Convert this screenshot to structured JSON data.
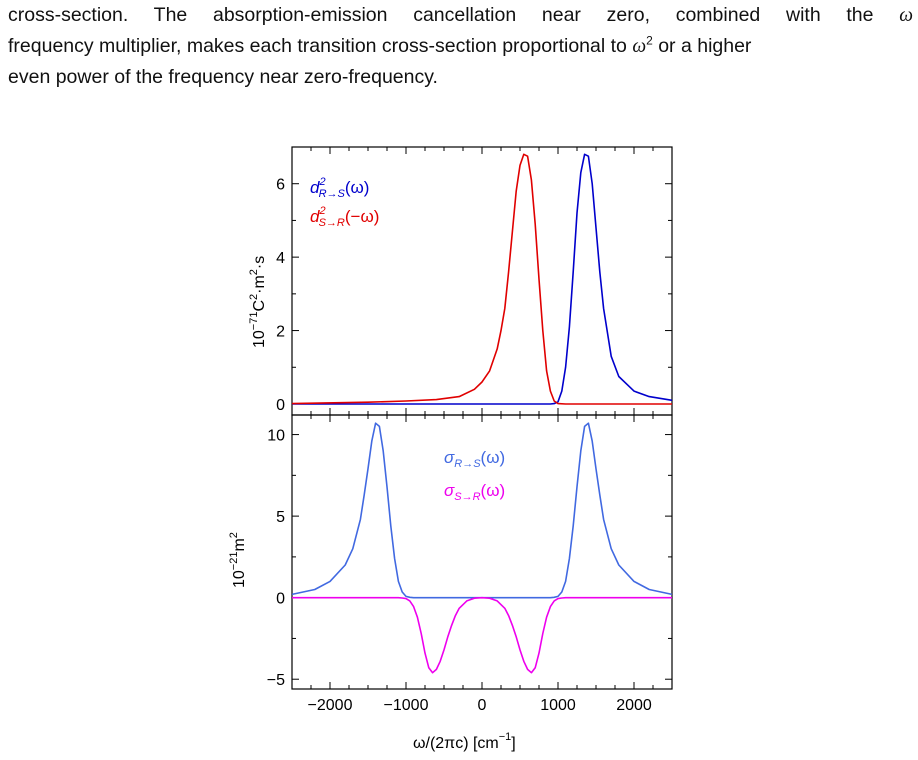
{
  "text": {
    "line1": {
      "before": "cross-section. The absorption-emission cancellation near zero, combined with the",
      "sym": "ω"
    },
    "line2": {
      "before": "frequency multiplier, makes each transition cross-section proportional to",
      "sym": "ω",
      "exp": "2",
      "after": "or a higher"
    },
    "line3": "even power of the frequency near zero-frequency."
  },
  "figure": {
    "top_ylabel": {
      "base": "10",
      "exp1": "−71",
      "unit": "C",
      "exp2": "2",
      "mid": "·m",
      "exp3": "2",
      "end": "·s"
    },
    "bottom_ylabel": {
      "base": "10",
      "exp1": "−21",
      "unit": "m",
      "exp2": "2"
    },
    "xlabel": {
      "main": "ω/(2πc) [cm",
      "exp": "−1",
      "end": "]"
    },
    "colors": {
      "blue_dark": "#0000cc",
      "red": "#e00000",
      "blue_light": "#4169e1",
      "magenta": "#ee00ee"
    }
  },
  "chart_data": [
    {
      "type": "line",
      "xlim": [
        -2500,
        2500
      ],
      "ylim": [
        -0.3,
        7.0
      ],
      "yticks": [
        0,
        2,
        4,
        6
      ],
      "ytick_labels": [
        "0",
        "2",
        "4",
        "6"
      ],
      "legend_placement": "top-left",
      "series": [
        {
          "name": "d²R→S(ω)",
          "label": {
            "main": "d",
            "sup": "2",
            "sub": "R→S",
            "arg": "(ω)"
          },
          "color": "#0000cc",
          "x": [
            -2500,
            900,
            950,
            1000,
            1050,
            1100,
            1150,
            1200,
            1250,
            1300,
            1350,
            1400,
            1450,
            1500,
            1550,
            1600,
            1700,
            1800,
            2000,
            2200,
            2500
          ],
          "y": [
            0,
            0,
            0.01,
            0.06,
            0.35,
            1.0,
            2.1,
            3.6,
            5.2,
            6.3,
            6.8,
            6.75,
            6.0,
            4.8,
            3.6,
            2.6,
            1.3,
            0.75,
            0.35,
            0.2,
            0.1
          ]
        },
        {
          "name": "d²S→R(−ω)",
          "label": {
            "main": "d",
            "sup": "2",
            "sub": "S→R",
            "arg": "(−ω)"
          },
          "color": "#e00000",
          "x": [
            -2500,
            -1500,
            -1000,
            -600,
            -300,
            -100,
            0,
            100,
            200,
            250,
            300,
            350,
            400,
            450,
            500,
            550,
            600,
            650,
            700,
            750,
            800,
            850,
            900,
            950,
            1000,
            1100,
            2500
          ],
          "y": [
            0.01,
            0.05,
            0.08,
            0.12,
            0.2,
            0.4,
            0.6,
            0.9,
            1.5,
            2.0,
            2.6,
            3.6,
            4.7,
            5.8,
            6.5,
            6.8,
            6.75,
            6.1,
            4.9,
            3.4,
            2.0,
            0.9,
            0.35,
            0.08,
            0.01,
            0,
            0
          ]
        }
      ]
    },
    {
      "type": "line",
      "xlim": [
        -2500,
        2500
      ],
      "ylim": [
        -5.6,
        11.2
      ],
      "yticks": [
        -5,
        0,
        5,
        10
      ],
      "ytick_labels": [
        "−5",
        "0",
        "5",
        "10"
      ],
      "xticks": [
        -2000,
        -1000,
        0,
        1000,
        2000
      ],
      "xtick_labels": [
        "−2000",
        "−1000",
        "0",
        "1000",
        "2000"
      ],
      "legend_placement": "top-center",
      "series": [
        {
          "name": "σR→S(ω)",
          "label": {
            "main": "σ",
            "sub": "R→S",
            "arg": "(ω)"
          },
          "color": "#4169e1",
          "x": [
            -2500,
            -2200,
            -2000,
            -1800,
            -1700,
            -1600,
            -1550,
            -1500,
            -1450,
            -1400,
            -1350,
            -1300,
            -1250,
            -1200,
            -1150,
            -1100,
            -1050,
            -1000,
            -950,
            -900,
            0,
            900,
            950,
            1000,
            1050,
            1100,
            1150,
            1200,
            1250,
            1300,
            1350,
            1400,
            1450,
            1500,
            1550,
            1600,
            1700,
            1800,
            2000,
            2200,
            2500
          ],
          "y": [
            0.2,
            0.5,
            1.0,
            2.0,
            3.0,
            4.8,
            6.3,
            7.9,
            9.6,
            10.7,
            10.5,
            9.0,
            6.8,
            4.4,
            2.4,
            1.0,
            0.35,
            0.08,
            0.02,
            0,
            0,
            0,
            0.02,
            0.08,
            0.35,
            1.0,
            2.4,
            4.4,
            6.8,
            9.0,
            10.5,
            10.7,
            9.6,
            7.9,
            6.3,
            4.8,
            3.0,
            2.0,
            1.0,
            0.5,
            0.2
          ]
        },
        {
          "name": "σS→R(ω)",
          "label": {
            "main": "σ",
            "sub": "S→R",
            "arg": "(ω)"
          },
          "color": "#ee00ee",
          "x": [
            -2500,
            -1100,
            -1050,
            -1000,
            -950,
            -900,
            -850,
            -800,
            -750,
            -700,
            -650,
            -600,
            -550,
            -500,
            -450,
            -400,
            -350,
            -300,
            -200,
            -100,
            0,
            100,
            200,
            300,
            350,
            400,
            450,
            500,
            550,
            600,
            650,
            700,
            750,
            800,
            850,
            900,
            950,
            1000,
            1050,
            1100,
            2500
          ],
          "y": [
            0,
            0,
            -0.02,
            -0.06,
            -0.2,
            -0.55,
            -1.2,
            -2.2,
            -3.4,
            -4.3,
            -4.6,
            -4.4,
            -3.9,
            -3.2,
            -2.4,
            -1.7,
            -1.1,
            -0.65,
            -0.2,
            -0.03,
            0,
            -0.03,
            -0.2,
            -0.65,
            -1.1,
            -1.7,
            -2.4,
            -3.2,
            -3.9,
            -4.4,
            -4.6,
            -4.3,
            -3.4,
            -2.2,
            -1.2,
            -0.55,
            -0.2,
            -0.06,
            -0.02,
            0,
            0
          ]
        }
      ]
    }
  ]
}
